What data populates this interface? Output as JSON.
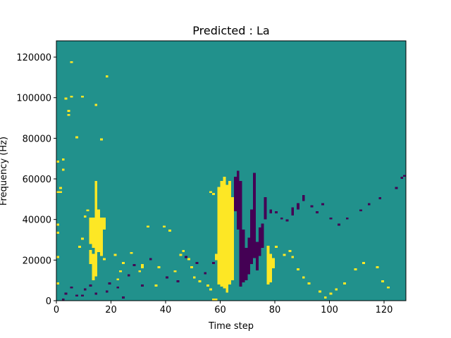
{
  "chart_data": {
    "type": "heatmap",
    "title": "Predicted : La",
    "xlabel": "Time step",
    "ylabel": "Frequency (Hz)",
    "xlim": [
      0,
      128
    ],
    "ylim": [
      0,
      128000
    ],
    "x_ticks": [
      0,
      20,
      40,
      60,
      80,
      100,
      120
    ],
    "x_tick_labels": [
      "0",
      "20",
      "40",
      "60",
      "80",
      "100",
      "120"
    ],
    "y_ticks": [
      0,
      20000,
      40000,
      60000,
      80000,
      100000,
      120000
    ],
    "y_tick_labels": [
      "0",
      "20000",
      "40000",
      "60000",
      "80000",
      "100000",
      "120000"
    ],
    "colors": {
      "background": "#21918c",
      "high": "#fde725",
      "low": "#440154"
    },
    "value_levels": {
      "low": -1,
      "background": 0,
      "high": 1
    },
    "high_cells": [
      [
        0,
        1,
        8,
        8
      ],
      [
        0,
        1,
        21,
        21
      ],
      [
        0,
        1,
        33,
        33
      ],
      [
        0,
        1,
        37,
        37
      ],
      [
        0,
        1,
        53,
        53
      ],
      [
        0,
        1,
        68,
        68
      ],
      [
        1,
        2,
        55,
        55
      ],
      [
        2,
        3,
        64,
        64
      ],
      [
        2,
        3,
        69,
        69
      ],
      [
        3,
        4,
        99,
        99
      ],
      [
        4,
        5,
        91,
        91
      ],
      [
        5,
        6,
        117,
        117
      ],
      [
        4,
        5,
        93,
        93
      ],
      [
        1,
        2,
        53,
        53
      ],
      [
        7,
        8,
        80,
        80
      ],
      [
        16,
        17,
        79,
        79
      ],
      [
        14,
        15,
        96,
        96
      ],
      [
        18,
        19,
        110,
        110
      ],
      [
        9,
        10,
        100,
        100
      ],
      [
        5,
        6,
        100,
        100
      ],
      [
        17,
        18,
        20,
        20
      ],
      [
        21,
        22,
        22,
        22
      ],
      [
        12,
        13,
        28,
        40
      ],
      [
        13,
        14,
        26,
        40
      ],
      [
        14,
        15,
        20,
        58
      ],
      [
        15,
        16,
        24,
        44
      ],
      [
        16,
        17,
        22,
        40
      ],
      [
        17,
        18,
        35,
        40
      ],
      [
        12,
        13,
        18,
        24
      ],
      [
        14,
        15,
        12,
        32
      ],
      [
        13,
        14,
        10,
        22
      ],
      [
        11,
        12,
        44,
        44
      ],
      [
        10,
        11,
        41,
        41
      ],
      [
        9,
        10,
        30,
        30
      ],
      [
        8,
        9,
        26,
        26
      ],
      [
        22,
        23,
        10,
        10
      ],
      [
        23,
        24,
        14,
        14
      ],
      [
        24,
        25,
        18,
        18
      ],
      [
        27,
        28,
        23,
        23
      ],
      [
        30,
        31,
        14,
        14
      ],
      [
        31,
        32,
        16,
        17
      ],
      [
        33,
        34,
        36,
        36
      ],
      [
        36,
        37,
        7,
        7
      ],
      [
        37,
        38,
        16,
        16
      ],
      [
        39,
        40,
        36,
        36
      ],
      [
        41,
        42,
        34,
        34
      ],
      [
        43,
        44,
        14,
        14
      ],
      [
        45,
        46,
        22,
        22
      ],
      [
        46,
        47,
        24,
        24
      ],
      [
        48,
        49,
        20,
        20
      ],
      [
        49,
        50,
        16,
        16
      ],
      [
        50,
        51,
        11,
        11
      ],
      [
        52,
        53,
        9,
        9
      ],
      [
        55,
        56,
        7,
        7
      ],
      [
        56,
        57,
        5,
        5
      ],
      [
        57,
        58,
        0,
        0
      ],
      [
        58,
        59,
        0,
        0
      ],
      [
        59,
        60,
        8,
        55
      ],
      [
        60,
        61,
        7,
        58
      ],
      [
        61,
        62,
        6,
        60
      ],
      [
        62,
        63,
        4,
        56
      ],
      [
        63,
        64,
        8,
        58
      ],
      [
        64,
        65,
        10,
        50
      ],
      [
        60,
        61,
        41,
        41
      ],
      [
        61,
        62,
        44,
        47
      ],
      [
        62,
        63,
        42,
        43
      ],
      [
        56,
        57,
        53,
        53
      ],
      [
        57,
        58,
        52,
        52
      ],
      [
        58,
        59,
        20,
        22
      ],
      [
        59,
        60,
        17,
        18
      ],
      [
        66,
        67,
        35,
        35
      ],
      [
        67,
        68,
        30,
        30
      ],
      [
        77,
        78,
        8,
        26
      ],
      [
        78,
        79,
        9,
        22
      ],
      [
        79,
        80,
        16,
        20
      ],
      [
        80,
        81,
        26,
        26
      ],
      [
        83,
        84,
        22,
        22
      ],
      [
        85,
        86,
        24,
        24
      ],
      [
        86,
        87,
        21,
        21
      ],
      [
        88,
        89,
        15,
        15
      ],
      [
        90,
        91,
        11,
        11
      ],
      [
        92,
        93,
        8,
        8
      ],
      [
        96,
        97,
        4,
        4
      ],
      [
        98,
        99,
        1,
        1
      ],
      [
        100,
        101,
        3,
        3
      ],
      [
        102,
        103,
        5,
        5
      ],
      [
        105,
        106,
        8,
        8
      ],
      [
        109,
        110,
        15,
        15
      ],
      [
        112,
        113,
        18,
        18
      ],
      [
        117,
        118,
        16,
        16
      ],
      [
        119,
        120,
        9,
        9
      ],
      [
        121,
        122,
        6,
        6
      ]
    ],
    "low_cells": [
      [
        2,
        3,
        0,
        0
      ],
      [
        3,
        4,
        3,
        3
      ],
      [
        5,
        6,
        6,
        6
      ],
      [
        7,
        8,
        2,
        2
      ],
      [
        9,
        10,
        2,
        2
      ],
      [
        10,
        11,
        5,
        5
      ],
      [
        12,
        13,
        7,
        7
      ],
      [
        14,
        15,
        3,
        3
      ],
      [
        18,
        19,
        4,
        4
      ],
      [
        19,
        20,
        8,
        8
      ],
      [
        22,
        23,
        6,
        6
      ],
      [
        24,
        25,
        1,
        1
      ],
      [
        26,
        27,
        12,
        12
      ],
      [
        28,
        29,
        17,
        17
      ],
      [
        31,
        32,
        7,
        7
      ],
      [
        34,
        35,
        20,
        20
      ],
      [
        40,
        41,
        11,
        11
      ],
      [
        44,
        45,
        9,
        9
      ],
      [
        47,
        48,
        21,
        21
      ],
      [
        51,
        52,
        18,
        18
      ],
      [
        54,
        55,
        13,
        13
      ],
      [
        57,
        58,
        18,
        18
      ],
      [
        65,
        66,
        44,
        60
      ],
      [
        66,
        67,
        35,
        63
      ],
      [
        67,
        68,
        7,
        58
      ],
      [
        68,
        69,
        9,
        34
      ],
      [
        69,
        70,
        10,
        25
      ],
      [
        70,
        71,
        13,
        30
      ],
      [
        71,
        72,
        18,
        44
      ],
      [
        72,
        73,
        21,
        62
      ],
      [
        73,
        74,
        15,
        28
      ],
      [
        74,
        75,
        22,
        35
      ],
      [
        75,
        76,
        26,
        37
      ],
      [
        76,
        77,
        40,
        50
      ],
      [
        78,
        79,
        43,
        44
      ],
      [
        80,
        81,
        43,
        43
      ],
      [
        82,
        83,
        40,
        40
      ],
      [
        84,
        85,
        39,
        39
      ],
      [
        86,
        87,
        42,
        45
      ],
      [
        88,
        89,
        45,
        47
      ],
      [
        90,
        91,
        49,
        51
      ],
      [
        93,
        94,
        46,
        46
      ],
      [
        95,
        96,
        43,
        43
      ],
      [
        97,
        98,
        47,
        47
      ],
      [
        100,
        101,
        40,
        40
      ],
      [
        103,
        104,
        37,
        37
      ],
      [
        106,
        107,
        40,
        40
      ],
      [
        111,
        112,
        44,
        44
      ],
      [
        114,
        115,
        47,
        47
      ],
      [
        118,
        119,
        50,
        50
      ],
      [
        124,
        125,
        55,
        55
      ],
      [
        126,
        127,
        60,
        60
      ],
      [
        127,
        128,
        61,
        61
      ]
    ]
  }
}
